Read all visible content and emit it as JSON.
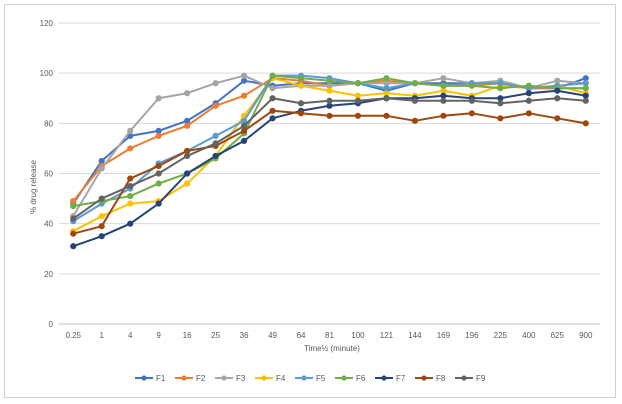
{
  "chart_data": {
    "type": "line",
    "title": "",
    "xlabel": "Time½ (minute)",
    "ylabel": "% drug release",
    "categories": [
      "0.25",
      "1",
      "4",
      "9",
      "16",
      "25",
      "36",
      "49",
      "64",
      "81",
      "100",
      "121",
      "144",
      "169",
      "196",
      "225",
      "400",
      "625",
      "900"
    ],
    "ylim": [
      0,
      120
    ],
    "yticks": [
      "0",
      "20",
      "40",
      "60",
      "80",
      "100",
      "120"
    ],
    "grid": true,
    "legend_position": "bottom",
    "series": [
      {
        "name": "F1",
        "color": "#4472C4",
        "values": [
          48,
          65,
          75,
          77,
          81,
          88,
          97,
          95,
          96,
          96,
          96,
          93,
          96,
          96,
          96,
          96,
          94,
          94,
          98
        ]
      },
      {
        "name": "F2",
        "color": "#ED7D31",
        "values": [
          49,
          63,
          70,
          75,
          79,
          87,
          91,
          98,
          97,
          95,
          96,
          97,
          96,
          95,
          95,
          96,
          94,
          94,
          94
        ]
      },
      {
        "name": "F3",
        "color": "#A5A5A5",
        "values": [
          43,
          62,
          77,
          90,
          92,
          96,
          99,
          94,
          95,
          95,
          96,
          96,
          96,
          98,
          96,
          97,
          94,
          97,
          96
        ]
      },
      {
        "name": "F4",
        "color": "#FFC000",
        "values": [
          37,
          43,
          48,
          49,
          56,
          67,
          83,
          98,
          95,
          93,
          91,
          92,
          91,
          93,
          91,
          95,
          94,
          95,
          92
        ]
      },
      {
        "name": "F5",
        "color": "#5B9BD5",
        "values": [
          41,
          48,
          54,
          64,
          69,
          75,
          81,
          99,
          99,
          98,
          96,
          94,
          96,
          95,
          96,
          96,
          94,
          95,
          96
        ]
      },
      {
        "name": "F6",
        "color": "#70AD47",
        "values": [
          47,
          49,
          51,
          56,
          60,
          66,
          76,
          99,
          98,
          97,
          96,
          98,
          96,
          95,
          95,
          94,
          95,
          94,
          94
        ]
      },
      {
        "name": "F7",
        "color": "#264478",
        "values": [
          31,
          35,
          40,
          48,
          60,
          67,
          73,
          82,
          85,
          87,
          88,
          90,
          90,
          91,
          90,
          90,
          92,
          93,
          91
        ]
      },
      {
        "name": "F8",
        "color": "#9E480E",
        "values": [
          36,
          39,
          58,
          63,
          69,
          71,
          77,
          85,
          84,
          83,
          83,
          83,
          81,
          83,
          84,
          82,
          84,
          82,
          80
        ]
      },
      {
        "name": "F9",
        "color": "#636363",
        "values": [
          42,
          50,
          55,
          60,
          67,
          72,
          79,
          90,
          88,
          89,
          89,
          90,
          89,
          89,
          89,
          88,
          89,
          90,
          89
        ]
      }
    ]
  }
}
